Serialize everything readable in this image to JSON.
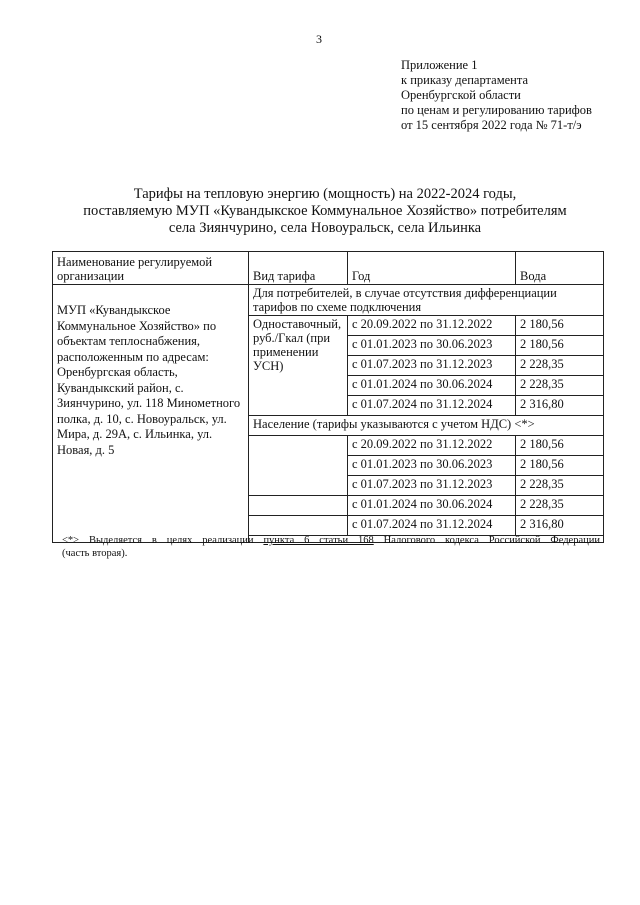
{
  "page_number": "3",
  "appendix": [
    "Приложение 1",
    "к приказу департамента",
    "Оренбургской области",
    "по ценам и регулированию тарифов",
    "от 15 сентября 2022 года № 71-т/э"
  ],
  "title": [
    "Тарифы на тепловую энергию (мощность) на 2022-2024 годы,",
    "поставляемую МУП «Кувандыкское Коммунальное Хозяйство» потребителям",
    "села Зиянчурино, села Новоуральск, села Ильинка"
  ],
  "table": {
    "headers": [
      "Наименование регулируемой организации",
      "Вид тарифа",
      "Год",
      "Вода"
    ],
    "organization": "МУП «Кувандыкское Коммунальное Хозяйство» по объектам теплоснабжения, расположенным по адресам: Оренбургская область, Кувандыкский район, с. Зиянчурино, ул. 118 Минометного полка, д. 10, с. Новоуральск, ул. Мира, д. 29А, с. Ильинка, ул. Новая, д. 5",
    "section1": "Для потребителей, в случае отсутствия дифференциации тарифов по схеме подключения",
    "tariff_type1": "Одноставочный, руб./Гкал (при применении УСН)",
    "rows1": [
      {
        "period": "с 20.09.2022 по 31.12.2022",
        "value": "2 180,56"
      },
      {
        "period": "с 01.01.2023 по 30.06.2023",
        "value": "2 180,56"
      },
      {
        "period": "с 01.07.2023 по 31.12.2023",
        "value": "2 228,35"
      },
      {
        "period": "с 01.01.2024 по 30.06.2024",
        "value": "2 228,35"
      },
      {
        "period": "с 01.07.2024 по 31.12.2024",
        "value": "2 316,80"
      }
    ],
    "section2": "Население (тарифы указываются с учетом НДС)  <*>",
    "rows2": [
      {
        "period": "с 20.09.2022 по 31.12.2022",
        "value": "2 180,56"
      },
      {
        "period": "с 01.01.2023 по 30.06.2023",
        "value": "2 180,56"
      },
      {
        "period": "с 01.07.2023 по 31.12.2023",
        "value": "2 228,35"
      },
      {
        "period": "с 01.01.2024 по 30.06.2024",
        "value": "2 228,35"
      },
      {
        "period": "с 01.07.2024 по 31.12.2024",
        "value": "2 316,80"
      }
    ]
  },
  "footnote": {
    "prefix": "<*> Выделяется в целях реализации ",
    "link": "пункта 6 статьи 168",
    "suffix": " Налогового кодекса Российской Федерации",
    "line2": "(часть вторая)."
  }
}
